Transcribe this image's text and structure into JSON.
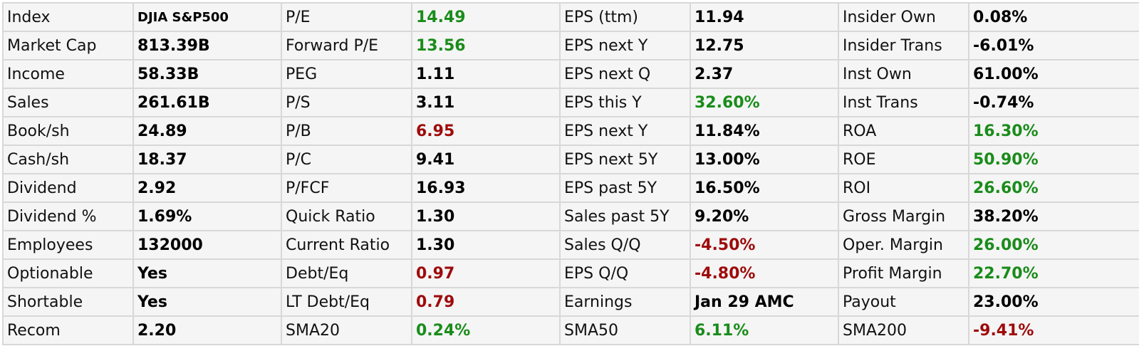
{
  "colors": {
    "positive": "#1a8c1a",
    "negative": "#9e0b0b",
    "neutral": "#000000",
    "cell_background": "#f5f5f5",
    "grid_line": "#d8d8d8"
  },
  "rows": [
    [
      {
        "label": "Index",
        "value": "DJIA S&P500",
        "tone": "neutral",
        "small": true
      },
      {
        "label": "P/E",
        "value": "14.49",
        "tone": "pos"
      },
      {
        "label": "EPS (ttm)",
        "value": "11.94",
        "tone": "neutral"
      },
      {
        "label": "Insider Own",
        "value": "0.08%",
        "tone": "neutral"
      }
    ],
    [
      {
        "label": "Market Cap",
        "value": "813.39B",
        "tone": "neutral"
      },
      {
        "label": "Forward P/E",
        "value": "13.56",
        "tone": "pos"
      },
      {
        "label": "EPS next Y",
        "value": "12.75",
        "tone": "neutral"
      },
      {
        "label": "Insider Trans",
        "value": "-6.01%",
        "tone": "neutral"
      }
    ],
    [
      {
        "label": "Income",
        "value": "58.33B",
        "tone": "neutral"
      },
      {
        "label": "PEG",
        "value": "1.11",
        "tone": "neutral"
      },
      {
        "label": "EPS next Q",
        "value": "2.37",
        "tone": "neutral"
      },
      {
        "label": "Inst Own",
        "value": "61.00%",
        "tone": "neutral"
      }
    ],
    [
      {
        "label": "Sales",
        "value": "261.61B",
        "tone": "neutral"
      },
      {
        "label": "P/S",
        "value": "3.11",
        "tone": "neutral"
      },
      {
        "label": "EPS this Y",
        "value": "32.60%",
        "tone": "pos"
      },
      {
        "label": "Inst Trans",
        "value": "-0.74%",
        "tone": "neutral"
      }
    ],
    [
      {
        "label": "Book/sh",
        "value": "24.89",
        "tone": "neutral"
      },
      {
        "label": "P/B",
        "value": "6.95",
        "tone": "neg"
      },
      {
        "label": "EPS next Y",
        "value": "11.84%",
        "tone": "neutral"
      },
      {
        "label": "ROA",
        "value": "16.30%",
        "tone": "pos"
      }
    ],
    [
      {
        "label": "Cash/sh",
        "value": "18.37",
        "tone": "neutral"
      },
      {
        "label": "P/C",
        "value": "9.41",
        "tone": "neutral"
      },
      {
        "label": "EPS next 5Y",
        "value": "13.00%",
        "tone": "neutral"
      },
      {
        "label": "ROE",
        "value": "50.90%",
        "tone": "pos"
      }
    ],
    [
      {
        "label": "Dividend",
        "value": "2.92",
        "tone": "neutral"
      },
      {
        "label": "P/FCF",
        "value": "16.93",
        "tone": "neutral"
      },
      {
        "label": "EPS past 5Y",
        "value": "16.50%",
        "tone": "neutral"
      },
      {
        "label": "ROI",
        "value": "26.60%",
        "tone": "pos"
      }
    ],
    [
      {
        "label": "Dividend %",
        "value": "1.69%",
        "tone": "neutral"
      },
      {
        "label": "Quick Ratio",
        "value": "1.30",
        "tone": "neutral"
      },
      {
        "label": "Sales past 5Y",
        "value": "9.20%",
        "tone": "neutral"
      },
      {
        "label": "Gross Margin",
        "value": "38.20%",
        "tone": "neutral"
      }
    ],
    [
      {
        "label": "Employees",
        "value": "132000",
        "tone": "neutral"
      },
      {
        "label": "Current Ratio",
        "value": "1.30",
        "tone": "neutral"
      },
      {
        "label": "Sales Q/Q",
        "value": "-4.50%",
        "tone": "neg"
      },
      {
        "label": "Oper. Margin",
        "value": "26.00%",
        "tone": "pos"
      }
    ],
    [
      {
        "label": "Optionable",
        "value": "Yes",
        "tone": "neutral"
      },
      {
        "label": "Debt/Eq",
        "value": "0.97",
        "tone": "neg"
      },
      {
        "label": "EPS Q/Q",
        "value": "-4.80%",
        "tone": "neg"
      },
      {
        "label": "Profit Margin",
        "value": "22.70%",
        "tone": "pos"
      }
    ],
    [
      {
        "label": "Shortable",
        "value": "Yes",
        "tone": "neutral"
      },
      {
        "label": "LT Debt/Eq",
        "value": "0.79",
        "tone": "neg"
      },
      {
        "label": "Earnings",
        "value": "Jan 29 AMC",
        "tone": "neutral"
      },
      {
        "label": "Payout",
        "value": "23.00%",
        "tone": "neutral"
      }
    ],
    [
      {
        "label": "Recom",
        "value": "2.20",
        "tone": "neutral"
      },
      {
        "label": "SMA20",
        "value": "0.24%",
        "tone": "pos"
      },
      {
        "label": "SMA50",
        "value": "6.11%",
        "tone": "pos"
      },
      {
        "label": "SMA200",
        "value": "-9.41%",
        "tone": "neg"
      }
    ]
  ]
}
